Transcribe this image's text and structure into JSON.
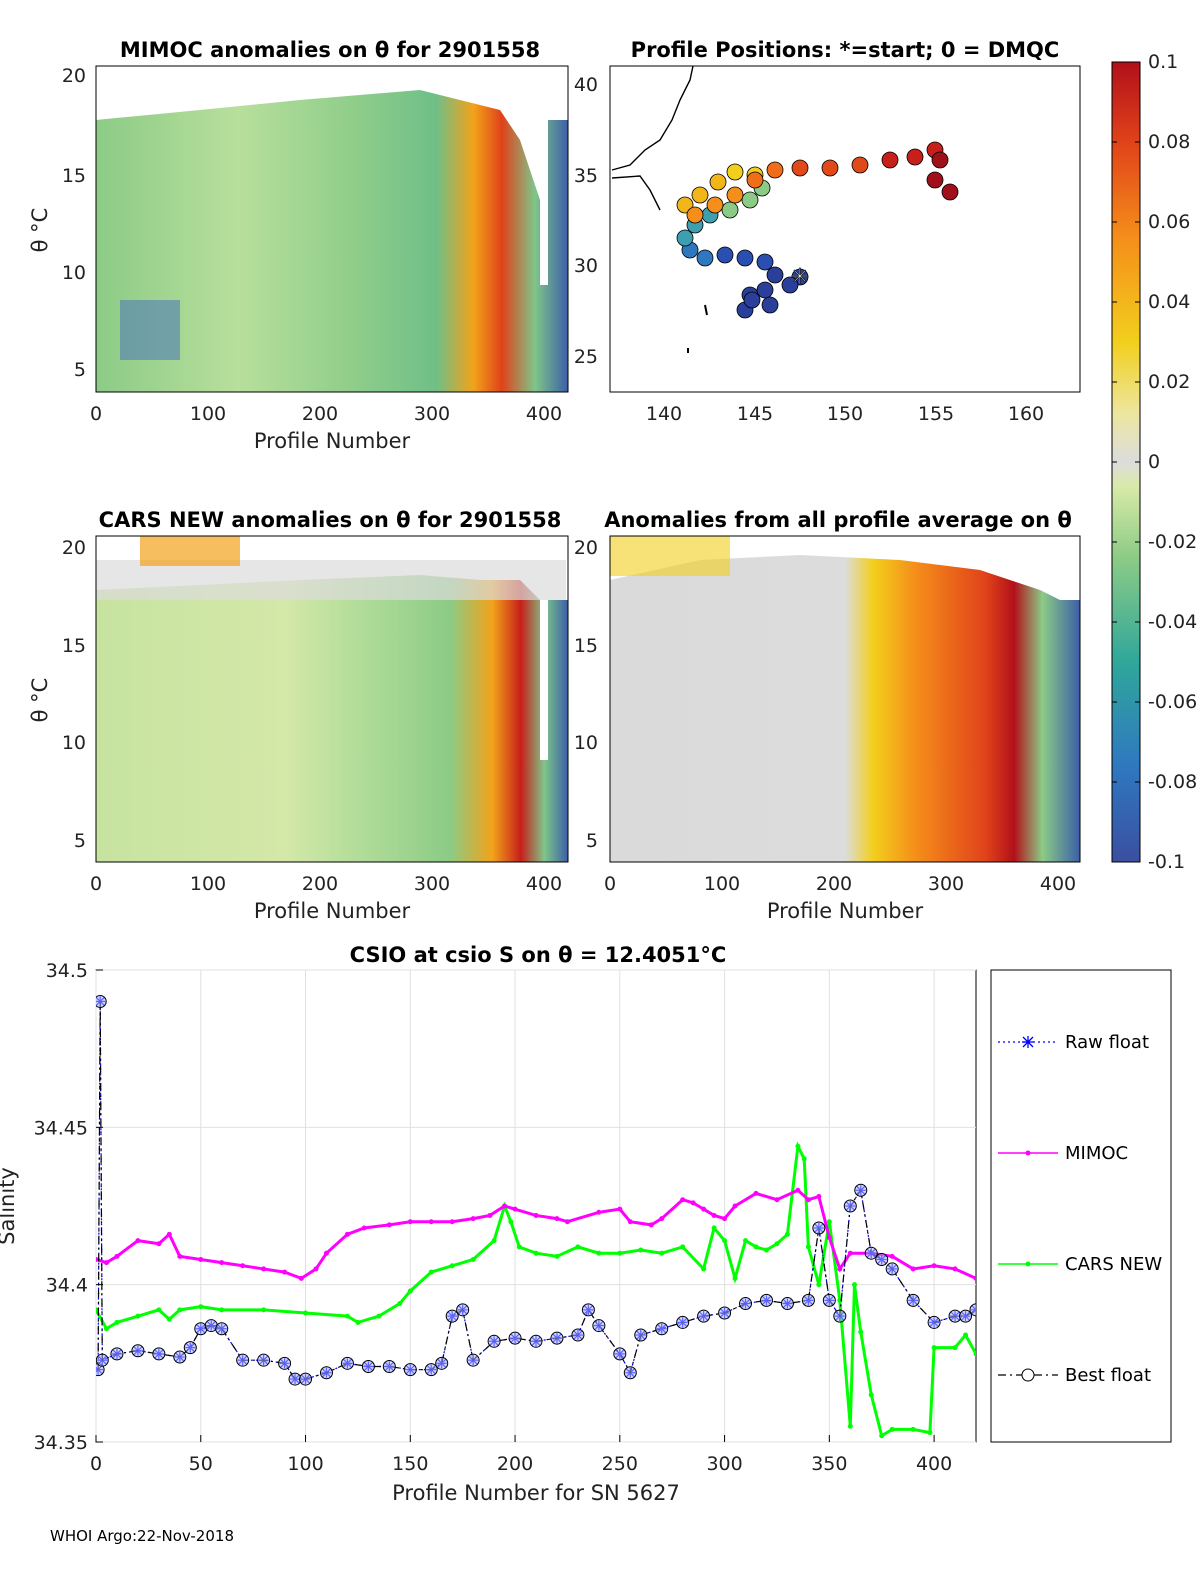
{
  "footer": "WHOI Argo:22-Nov-2018",
  "colors": {
    "raw": "#0000ff",
    "mimoc": "#ff00ff",
    "cars": "#00ff00",
    "best": "#000000",
    "best_marker_fill": "#aab4ff"
  },
  "panels": {
    "mimoc": {
      "title": "MIMOC anomalies on θ  for 2901558",
      "xlabel": "Profile Number",
      "ylabel": "θ °C",
      "xticks": [
        "0",
        "100",
        "200",
        "300",
        "400"
      ],
      "yticks": [
        "20",
        "15",
        "10",
        "5"
      ]
    },
    "positions": {
      "title": "Profile Positions: *=start; 0 = DMQC",
      "xticks": [
        "140",
        "145",
        "150",
        "155",
        "160"
      ],
      "yticks": [
        "40",
        "35",
        "30",
        "25"
      ]
    },
    "cars": {
      "title": "CARS NEW anomalies on θ for 2901558",
      "xlabel": "Profile Number",
      "ylabel": "θ °C",
      "xticks": [
        "0",
        "100",
        "200",
        "300",
        "400"
      ],
      "yticks": [
        "20",
        "15",
        "10",
        "5"
      ]
    },
    "average": {
      "title": "Anomalies from all profile average on θ",
      "xlabel": "Profile Number",
      "xticks": [
        "0",
        "100",
        "200",
        "300",
        "400"
      ],
      "yticks": [
        "20",
        "15",
        "10",
        "5"
      ]
    }
  },
  "colorbar": {
    "ticks": [
      "0.1",
      "0.08",
      "0.06",
      "0.04",
      "0.02",
      "0",
      "-0.02",
      "-0.04",
      "-0.06",
      "-0.08",
      "-0.1"
    ],
    "values": [
      0.1,
      0.08,
      0.06,
      0.04,
      0.02,
      0,
      -0.02,
      -0.04,
      -0.06,
      -0.08,
      -0.1
    ],
    "range": [
      -0.1,
      0.1
    ]
  },
  "chart_data": {
    "type": "line",
    "title": "CSIO at csio S on θ = 12.4051°C",
    "xlabel": "Profile Number for SN 5627",
    "ylabel": "Salinity",
    "xlim": [
      0,
      420
    ],
    "ylim": [
      34.35,
      34.5
    ],
    "xticks": [
      "0",
      "50",
      "100",
      "150",
      "200",
      "250",
      "300",
      "350",
      "400"
    ],
    "yticks": [
      "34.5",
      "34.45",
      "34.4",
      "34.35"
    ],
    "grid": true,
    "legend_position": "right",
    "series": [
      {
        "name": "Raw float",
        "style": "dotted-star",
        "x": [
          1,
          2,
          3,
          10,
          20,
          30,
          40,
          45,
          50,
          55,
          60,
          70,
          80,
          90,
          95,
          100,
          110,
          120,
          130,
          140,
          150,
          160,
          165,
          170,
          175,
          180,
          190,
          200,
          210,
          220,
          230,
          235,
          240,
          250,
          255,
          260,
          270,
          280,
          290,
          300,
          310,
          320,
          330,
          340,
          345,
          350,
          355,
          360,
          365,
          370,
          375,
          380,
          390,
          400,
          410,
          415,
          420
        ],
        "values": [
          34.373,
          34.49,
          34.376,
          34.378,
          34.379,
          34.378,
          34.377,
          34.38,
          34.386,
          34.387,
          34.386,
          34.376,
          34.376,
          34.375,
          34.37,
          34.37,
          34.372,
          34.375,
          34.374,
          34.374,
          34.373,
          34.373,
          34.375,
          34.39,
          34.392,
          34.376,
          34.382,
          34.383,
          34.382,
          34.383,
          34.384,
          34.392,
          34.387,
          34.378,
          34.372,
          34.384,
          34.386,
          34.388,
          34.39,
          34.391,
          34.394,
          34.395,
          34.394,
          34.395,
          34.418,
          34.395,
          34.39,
          34.425,
          34.43,
          34.41,
          34.408,
          34.405,
          34.395,
          34.388,
          34.39,
          34.39,
          34.392
        ]
      },
      {
        "name": "MIMOC",
        "style": "solid-dot",
        "x": [
          0,
          5,
          10,
          20,
          30,
          35,
          40,
          50,
          60,
          70,
          80,
          90,
          98,
          105,
          110,
          120,
          128,
          140,
          150,
          160,
          170,
          180,
          188,
          195,
          200,
          210,
          220,
          225,
          240,
          250,
          255,
          265,
          270,
          280,
          285,
          290,
          295,
          300,
          305,
          315,
          325,
          335,
          340,
          345,
          350,
          355,
          360,
          370,
          380,
          390,
          400,
          410,
          420
        ],
        "values": [
          34.408,
          34.407,
          34.409,
          34.414,
          34.413,
          34.416,
          34.409,
          34.408,
          34.407,
          34.406,
          34.405,
          34.404,
          34.402,
          34.405,
          34.41,
          34.416,
          34.418,
          34.419,
          34.42,
          34.42,
          34.42,
          34.421,
          34.422,
          34.425,
          34.424,
          34.422,
          34.421,
          34.42,
          34.423,
          34.424,
          34.42,
          34.419,
          34.421,
          34.427,
          34.426,
          34.424,
          34.422,
          34.421,
          34.425,
          34.429,
          34.427,
          34.43,
          34.427,
          34.428,
          34.415,
          34.405,
          34.41,
          34.41,
          34.409,
          34.405,
          34.406,
          34.405,
          34.402
        ]
      },
      {
        "name": "CARS NEW",
        "style": "solid-dot",
        "x": [
          0,
          5,
          10,
          20,
          30,
          35,
          40,
          50,
          60,
          80,
          100,
          120,
          125,
          135,
          145,
          150,
          160,
          170,
          180,
          190,
          195,
          198,
          202,
          210,
          220,
          230,
          240,
          250,
          260,
          270,
          280,
          290,
          295,
          300,
          305,
          310,
          315,
          320,
          325,
          330,
          335,
          338,
          340,
          345,
          350,
          355,
          360,
          362,
          365,
          370,
          375,
          380,
          390,
          398,
          400,
          410,
          415,
          420
        ],
        "values": [
          34.392,
          34.386,
          34.388,
          34.39,
          34.392,
          34.389,
          34.392,
          34.393,
          34.392,
          34.392,
          34.391,
          34.39,
          34.388,
          34.39,
          34.394,
          34.398,
          34.404,
          34.406,
          34.408,
          34.414,
          34.425,
          34.42,
          34.412,
          34.41,
          34.409,
          34.412,
          34.41,
          34.41,
          34.411,
          34.41,
          34.412,
          34.405,
          34.418,
          34.414,
          34.402,
          34.414,
          34.412,
          34.411,
          34.413,
          34.416,
          34.444,
          34.44,
          34.412,
          34.4,
          34.42,
          34.395,
          34.355,
          34.4,
          34.385,
          34.365,
          34.352,
          34.354,
          34.354,
          34.353,
          34.38,
          34.38,
          34.384,
          34.378
        ]
      },
      {
        "name": "Best float",
        "style": "dashdot-circle",
        "x": [
          1,
          2,
          3,
          10,
          20,
          30,
          40,
          45,
          50,
          55,
          60,
          70,
          80,
          90,
          95,
          100,
          110,
          120,
          130,
          140,
          150,
          160,
          165,
          170,
          175,
          180,
          190,
          200,
          210,
          220,
          230,
          235,
          240,
          250,
          255,
          260,
          270,
          280,
          290,
          300,
          310,
          320,
          330,
          340,
          345,
          350,
          355,
          360,
          365,
          370,
          375,
          380,
          390,
          400,
          410,
          415,
          420
        ],
        "values": [
          34.373,
          34.49,
          34.376,
          34.378,
          34.379,
          34.378,
          34.377,
          34.38,
          34.386,
          34.387,
          34.386,
          34.376,
          34.376,
          34.375,
          34.37,
          34.37,
          34.372,
          34.375,
          34.374,
          34.374,
          34.373,
          34.373,
          34.375,
          34.39,
          34.392,
          34.376,
          34.382,
          34.383,
          34.382,
          34.383,
          34.384,
          34.392,
          34.387,
          34.378,
          34.372,
          34.384,
          34.386,
          34.388,
          34.39,
          34.391,
          34.394,
          34.395,
          34.394,
          34.395,
          34.418,
          34.395,
          34.39,
          34.425,
          34.43,
          34.41,
          34.408,
          34.405,
          34.395,
          34.388,
          34.39,
          34.39,
          34.392
        ]
      }
    ]
  }
}
